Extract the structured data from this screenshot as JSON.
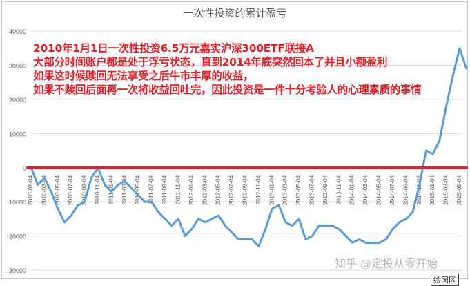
{
  "chart_data": {
    "type": "line",
    "title": "一次性投资的累计盈亏",
    "xlabel": "",
    "ylabel": "",
    "ylim": [
      -30000,
      40000
    ],
    "yticks": [
      40000,
      30000,
      20000,
      10000,
      0,
      -10000,
      -20000,
      -30000
    ],
    "ytick_labels": [
      "40000",
      "30000",
      "20000",
      "10000",
      "0",
      "-10000",
      "-20000",
      "-30000"
    ],
    "xtick_labels": [
      "2010-01-04",
      "2010-03-04",
      "2010-05-04",
      "2010-07-04",
      "2010-09-04",
      "2010-11-04",
      "2011-01-04",
      "2011-03-04",
      "2011-05-04",
      "2011-07-04",
      "2011-09-04",
      "2011-11-04",
      "2012-01-04",
      "2012-03-04",
      "2012-05-04",
      "2012-07-04",
      "2012-09-04",
      "2012-11-04",
      "2013-01-04",
      "2013-03-04",
      "2013-05-04",
      "2013-07-04",
      "2013-09-04",
      "2013-11-04",
      "2014-01-04",
      "2014-03-04",
      "2014-05-04",
      "2014-07-04",
      "2014-09-04",
      "2014-11-04",
      "2015-01-04",
      "2015-03-04",
      "2015-05-04"
    ],
    "grid": true,
    "series": [
      {
        "color": "#5b9bd5",
        "x": [
          "2010-01",
          "2010-02",
          "2010-03",
          "2010-04",
          "2010-05",
          "2010-06",
          "2010-07",
          "2010-08",
          "2010-09",
          "2010-10",
          "2010-11",
          "2010-12",
          "2011-01",
          "2011-02",
          "2011-03",
          "2011-04",
          "2011-05",
          "2011-06",
          "2011-07",
          "2011-08",
          "2011-09",
          "2011-10",
          "2011-11",
          "2011-12",
          "2012-01",
          "2012-02",
          "2012-03",
          "2012-04",
          "2012-05",
          "2012-06",
          "2012-07",
          "2012-08",
          "2012-09",
          "2012-10",
          "2012-11",
          "2012-12",
          "2013-01",
          "2013-02",
          "2013-03",
          "2013-04",
          "2013-05",
          "2013-06",
          "2013-07",
          "2013-08",
          "2013-09",
          "2013-10",
          "2013-11",
          "2013-12",
          "2014-01",
          "2014-02",
          "2014-03",
          "2014-04",
          "2014-05",
          "2014-06",
          "2014-07",
          "2014-08",
          "2014-09",
          "2014-10",
          "2014-11",
          "2014-12",
          "2015-01",
          "2015-02",
          "2015-03",
          "2015-04",
          "2015-05",
          "2015-06"
        ],
        "values": [
          0,
          -5000,
          -3000,
          -7000,
          -12000,
          -16000,
          -14000,
          -11000,
          -10000,
          -3000,
          0,
          -5000,
          -7000,
          -5000,
          -4000,
          -6000,
          -8000,
          -10000,
          -10000,
          -13000,
          -15000,
          -17000,
          -15000,
          -20000,
          -18000,
          -15000,
          -16000,
          -15000,
          -14000,
          -17000,
          -19000,
          -21000,
          -21000,
          -21000,
          -23000,
          -18000,
          -12000,
          -11000,
          -16000,
          -17000,
          -15000,
          -21000,
          -20000,
          -17000,
          -17000,
          -17000,
          -18000,
          -20000,
          -22000,
          -21000,
          -22000,
          -22000,
          -22000,
          -21000,
          -18000,
          -16000,
          -15000,
          -13000,
          -5000,
          5000,
          4000,
          8000,
          18000,
          27000,
          35000,
          29000
        ]
      }
    ],
    "reference_line": {
      "value": 0,
      "color": "#e0202a"
    },
    "annotations": [
      "2010年1月1日一次性投资6.5万元嘉实沪深300ETF联接A",
      "大部分时间账户都是处于浮亏状态，直到2014年底突然回本了并且小额盈利",
      "如果这时候赎回无法享受之后牛市丰厚的收益，",
      "如果不赎回后面再一次将收益回吐完，因此投资是一件十分考验人的心理素质的事情"
    ]
  },
  "watermark": "知乎 @定投从零开始",
  "tooltip": "绘图区"
}
